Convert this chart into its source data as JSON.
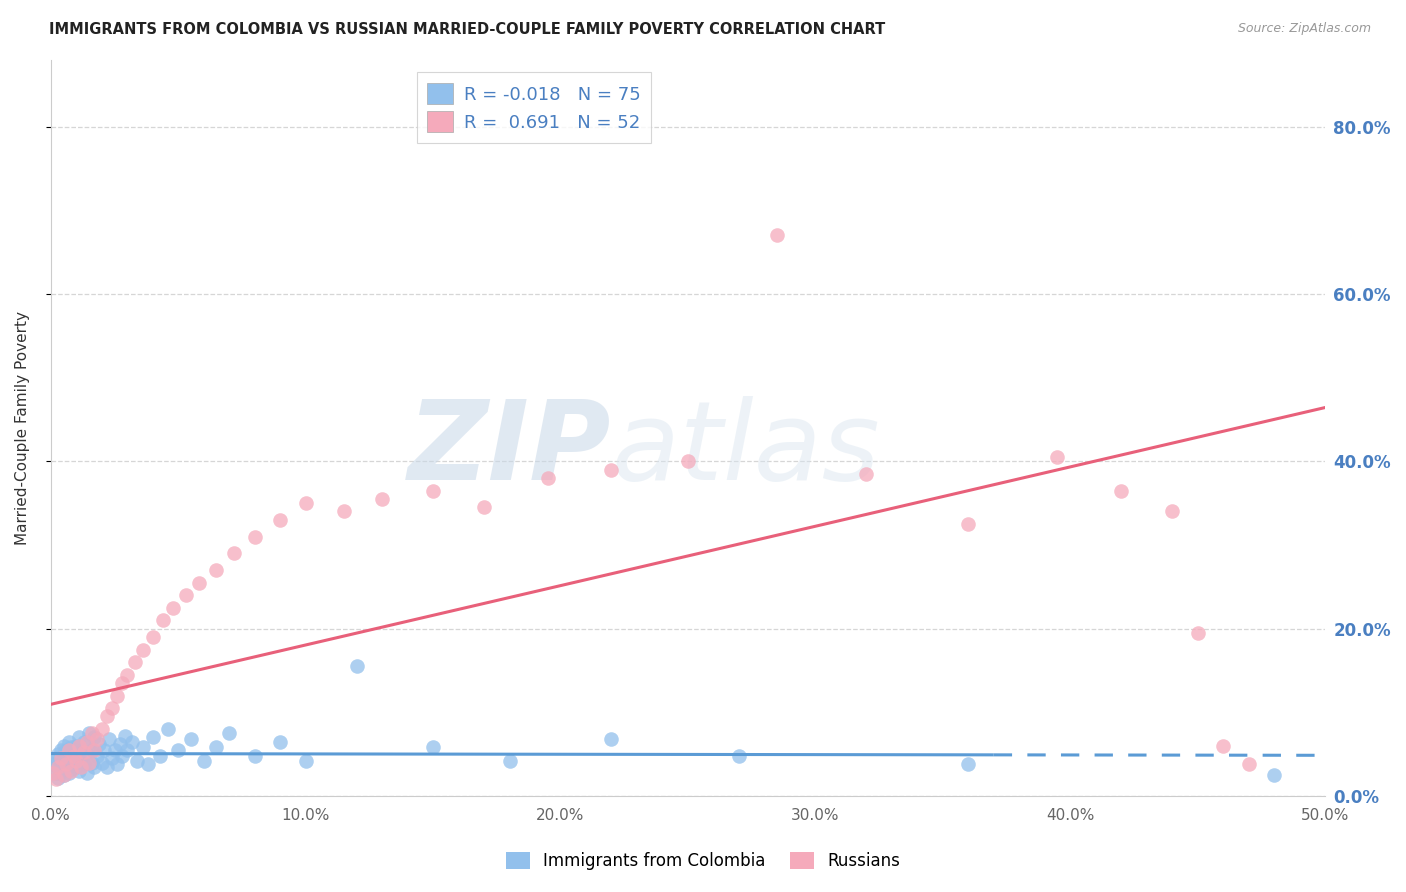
{
  "title": "IMMIGRANTS FROM COLOMBIA VS RUSSIAN MARRIED-COUPLE FAMILY POVERTY CORRELATION CHART",
  "source": "Source: ZipAtlas.com",
  "ylabel_label": "Married-Couple Family Poverty",
  "xlim": [
    0.0,
    0.5
  ],
  "ylim": [
    0.0,
    0.88
  ],
  "colombia_color": "#92C0EC",
  "russia_color": "#F5AABB",
  "colombia_line_color": "#5B9BD5",
  "russia_line_color": "#E8607A",
  "r_colombia": -0.018,
  "n_colombia": 75,
  "r_russia": 0.691,
  "n_russia": 52,
  "colombia_x": [
    0.001,
    0.002,
    0.002,
    0.003,
    0.003,
    0.003,
    0.004,
    0.004,
    0.004,
    0.005,
    0.005,
    0.005,
    0.006,
    0.006,
    0.006,
    0.007,
    0.007,
    0.007,
    0.008,
    0.008,
    0.008,
    0.009,
    0.009,
    0.01,
    0.01,
    0.01,
    0.011,
    0.011,
    0.012,
    0.012,
    0.013,
    0.013,
    0.014,
    0.014,
    0.015,
    0.015,
    0.016,
    0.016,
    0.017,
    0.017,
    0.018,
    0.019,
    0.02,
    0.021,
    0.022,
    0.023,
    0.024,
    0.025,
    0.026,
    0.027,
    0.028,
    0.029,
    0.03,
    0.032,
    0.034,
    0.036,
    0.038,
    0.04,
    0.043,
    0.046,
    0.05,
    0.055,
    0.06,
    0.065,
    0.07,
    0.08,
    0.09,
    0.1,
    0.12,
    0.15,
    0.18,
    0.22,
    0.27,
    0.36,
    0.48
  ],
  "colombia_y": [
    0.038,
    0.045,
    0.028,
    0.05,
    0.035,
    0.022,
    0.055,
    0.04,
    0.03,
    0.048,
    0.025,
    0.06,
    0.042,
    0.033,
    0.055,
    0.038,
    0.028,
    0.065,
    0.045,
    0.032,
    0.058,
    0.04,
    0.052,
    0.035,
    0.06,
    0.045,
    0.07,
    0.03,
    0.055,
    0.042,
    0.065,
    0.038,
    0.05,
    0.028,
    0.06,
    0.075,
    0.04,
    0.055,
    0.035,
    0.07,
    0.048,
    0.062,
    0.04,
    0.055,
    0.035,
    0.068,
    0.045,
    0.055,
    0.038,
    0.062,
    0.048,
    0.072,
    0.055,
    0.065,
    0.042,
    0.058,
    0.038,
    0.07,
    0.048,
    0.08,
    0.055,
    0.068,
    0.042,
    0.058,
    0.075,
    0.048,
    0.065,
    0.042,
    0.155,
    0.058,
    0.042,
    0.068,
    0.048,
    0.038,
    0.025
  ],
  "russia_x": [
    0.001,
    0.002,
    0.003,
    0.004,
    0.005,
    0.006,
    0.007,
    0.008,
    0.009,
    0.01,
    0.011,
    0.012,
    0.013,
    0.014,
    0.015,
    0.016,
    0.017,
    0.018,
    0.02,
    0.022,
    0.024,
    0.026,
    0.028,
    0.03,
    0.033,
    0.036,
    0.04,
    0.044,
    0.048,
    0.053,
    0.058,
    0.065,
    0.072,
    0.08,
    0.09,
    0.1,
    0.115,
    0.13,
    0.15,
    0.17,
    0.195,
    0.22,
    0.25,
    0.285,
    0.32,
    0.36,
    0.395,
    0.42,
    0.44,
    0.45,
    0.46,
    0.47
  ],
  "russia_y": [
    0.028,
    0.02,
    0.035,
    0.045,
    0.025,
    0.038,
    0.055,
    0.03,
    0.048,
    0.042,
    0.06,
    0.035,
    0.052,
    0.065,
    0.04,
    0.075,
    0.055,
    0.068,
    0.08,
    0.095,
    0.105,
    0.12,
    0.135,
    0.145,
    0.16,
    0.175,
    0.19,
    0.21,
    0.225,
    0.24,
    0.255,
    0.27,
    0.29,
    0.31,
    0.33,
    0.35,
    0.34,
    0.355,
    0.365,
    0.345,
    0.38,
    0.39,
    0.4,
    0.67,
    0.385,
    0.325,
    0.405,
    0.365,
    0.34,
    0.195,
    0.06,
    0.038
  ],
  "watermark_zip": "ZIP",
  "watermark_atlas": "atlas",
  "background_color": "#FFFFFF",
  "grid_color": "#CCCCCC",
  "ytick_vals": [
    0.0,
    0.2,
    0.4,
    0.6,
    0.8
  ],
  "xtick_vals": [
    0.0,
    0.1,
    0.2,
    0.3,
    0.4,
    0.5
  ]
}
